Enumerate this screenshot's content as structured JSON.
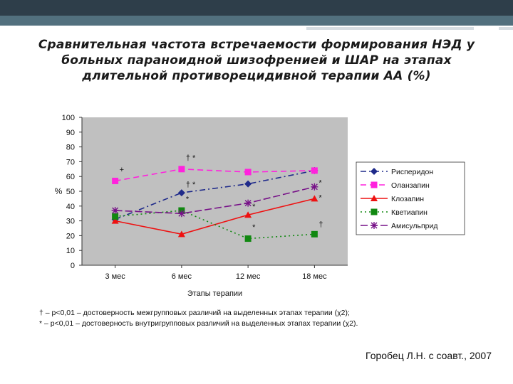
{
  "slide": {
    "title_lines": [
      "Сравнительная частота встречаемости формирования НЭД у",
      "больных параноидной шизофренией и ШАР на этапах",
      "длительной противорецидивной терапии АА (%)"
    ],
    "footnotes": [
      "† –  р<0,01 – достоверность межгрупповых различий на выделенных этапах терапии (χ2);",
      "* –  р<0,01 –  достоверность внутригрупповых различий на выделенных этапах терапии (χ2)."
    ],
    "author": "Горобец Л.Н. с соавт., 2007"
  },
  "colors": {
    "header_dark": "#2e3e4a",
    "header_accent": "#52707e",
    "plot_bg": "#c0c0c0"
  },
  "chart_data": {
    "type": "line",
    "title": "",
    "xlabel": "Этапы терапии",
    "ylabel": "%",
    "categories": [
      "3 мес",
      "6 мес",
      "12 мес",
      "18 мес"
    ],
    "ylim": [
      0,
      100
    ],
    "yticks": [
      0,
      10,
      20,
      30,
      40,
      50,
      60,
      70,
      80,
      90,
      100
    ],
    "grid": false,
    "legend_position": "right",
    "series": [
      {
        "name": "Рисперидон",
        "values": [
          31,
          49,
          55,
          64
        ],
        "color": "#1f2a8a",
        "marker": "diamond",
        "dash": "8 4 2 4"
      },
      {
        "name": "Оланзапин",
        "values": [
          57,
          65,
          63,
          64
        ],
        "color": "#ff22dd",
        "marker": "square",
        "dash": "8 5"
      },
      {
        "name": "Клозапин",
        "values": [
          30,
          21,
          34,
          45
        ],
        "color": "#ee1111",
        "marker": "triangle",
        "dash": ""
      },
      {
        "name": "Кветиапин",
        "values": [
          33,
          37,
          18,
          21
        ],
        "color": "#118811",
        "marker": "square",
        "dash": "2 4"
      },
      {
        "name": "Амисульприд",
        "values": [
          37,
          35,
          42,
          53
        ],
        "color": "#771188",
        "marker": "star",
        "dash": "10 4"
      }
    ],
    "annotations": [
      {
        "text": "+",
        "cat": 0,
        "y": 63
      },
      {
        "text": "† *",
        "cat": 1,
        "y": 71
      },
      {
        "text": "† *",
        "cat": 1,
        "y": 53
      },
      {
        "text": "*",
        "cat": 1,
        "y": 43
      },
      {
        "text": "*",
        "cat": 2,
        "y": 38
      },
      {
        "text": "*",
        "cat": 2,
        "y": 24
      },
      {
        "text": "*",
        "cat": 3,
        "y": 54
      },
      {
        "text": "*",
        "cat": 3,
        "y": 44
      },
      {
        "text": "†",
        "cat": 3,
        "y": 26
      }
    ]
  }
}
